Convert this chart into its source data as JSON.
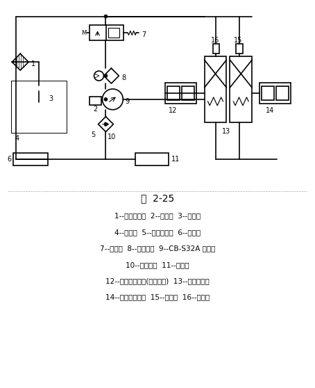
{
  "title": "图  2-25",
  "bg_color": "#ffffff",
  "line_color": "#000000",
  "legend_lines": [
    "1--机油散热器  2--分动筱  3--溢流阀",
    "4--变速筒  5--强制润滑孔  6--变速筱",
    "7--减压阀  8--细过滤器  9--CB-S32A 转向泵",
    "10--粗过滤器  11--后桥筱",
    "12--左转向离合器(结合位置)  13--转向操纵阀",
    "14--右转向离合器  15--右拐杆  16--左拐杆"
  ],
  "figsize": [
    4.54,
    5.58
  ],
  "dpi": 100
}
